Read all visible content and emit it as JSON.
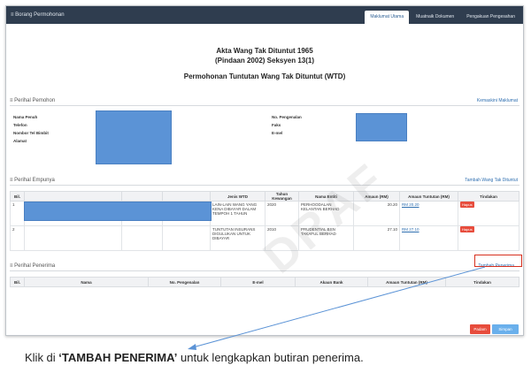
{
  "window": {
    "title": "≡ Borang Permohonan"
  },
  "tabs": [
    {
      "label": "Maklumat Utama"
    },
    {
      "label": "Muatnaik Dokumen"
    },
    {
      "label": "Pengakuan Pengesahan"
    }
  ],
  "header": {
    "line1": "Akta Wang Tak Dituntut 1965",
    "line2": "(Pindaan 2002) Seksyen 13(1)",
    "line3": "Permohonan Tuntutan Wang Tak Dituntut (WTD)"
  },
  "pemohon": {
    "section_title": "≡ Perihal Pemohon",
    "action": "Kemaskini Maklumat",
    "labels": {
      "nama": "Nama Penuh",
      "telefon": "Telefon",
      "tel_bimbit": "Nombor Tel Bimbit",
      "alamat": "Alamat",
      "pengenalan": "No. Pengenalan",
      "faks": "Faks",
      "email": "E-mel"
    }
  },
  "empunya": {
    "section_title": "≡ Perihal Empunya",
    "action": "Tambah Wang Tak Dituntut",
    "columns": [
      "Bil.",
      "",
      "",
      "",
      "Jenis WTD",
      "Tahun Kewangan",
      "Nama Entiti",
      "Amaun (RM)",
      "Amaun Tuntutan (RM)",
      "Tindakan"
    ],
    "rows": [
      {
        "bil": "1",
        "jenis": "LAIN-LAIN WANG YANG KENA DIBAYAR DALAM TEMPOH 1 TAHUN",
        "tahun": "2020",
        "entiti": "PERHOODALAN KELANTAN BERHAD",
        "amaun": "20.20",
        "tuntutan": "RM 20.20",
        "tindakan": "Hapus"
      },
      {
        "bil": "2",
        "jenis": "TUNTUTAN INSURANS DIGULUKAN UNTUK DIBAYAR",
        "tahun": "2010",
        "entiti": "PRUDENTIAL BSN TAKAFUL BERHAD",
        "amaun": "27.10",
        "tuntutan": "RM 27.10",
        "tindakan": "Hapus"
      }
    ]
  },
  "penerima": {
    "section_title": "≡ Perihal Penerima",
    "action": "Tambah Penerima",
    "columns": [
      "Bil.",
      "Nama",
      "No. Pengenalan",
      "E-mel",
      "Akaun Bank",
      "Amaun Tuntutan (RM)",
      "Tindakan"
    ]
  },
  "footer": {
    "padam": "Padam",
    "simpan": "Simpan"
  },
  "watermark": "DRAF",
  "caption": {
    "pre": "Klik di ",
    "bold": "‘TAMBAH PENERIMA’",
    "post": " untuk lengkapkan butiran penerima."
  },
  "colors": {
    "topbar": "#2f3d4f",
    "redaction": "#5b93d6",
    "danger": "#e74c3c",
    "link": "#2f6fb0",
    "highlight": "#d7301f"
  }
}
